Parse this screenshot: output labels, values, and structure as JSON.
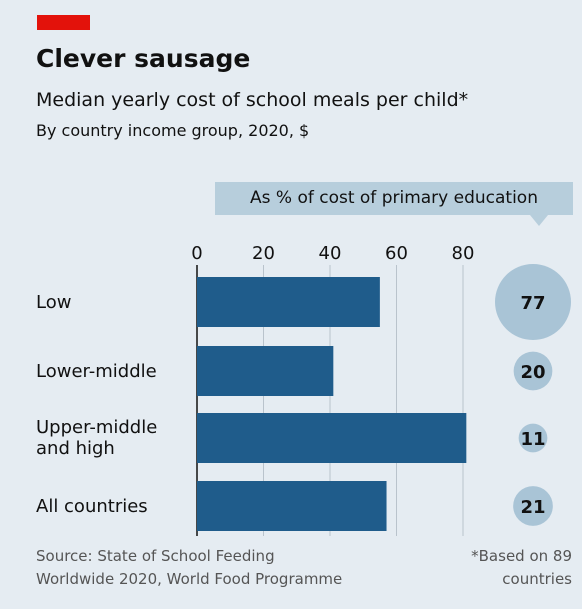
{
  "chart_data": {
    "type": "bar",
    "title": "Clever sausage",
    "subtitle": "Median yearly cost of school meals per child*",
    "description": "By country income group, 2020, $",
    "categories": [
      "Low",
      "Lower-middle",
      "Upper-middle and high",
      "All countries"
    ],
    "series": [
      {
        "color": "#1f5c8b",
        "values": [
          55,
          41,
          81,
          57
        ]
      },
      {
        "name": "As % of cost of primary education",
        "type": "bubble",
        "color": "#a9c4d6",
        "values": [
          77,
          20,
          11,
          21
        ]
      }
    ],
    "xlim": [
      0,
      82
    ],
    "xticks": [
      0,
      20,
      40,
      60,
      80
    ],
    "grid": true,
    "source": "Source: State of School Feeding Worldwide 2020, World Food Programme",
    "note": "*Based on 89 countries"
  }
}
